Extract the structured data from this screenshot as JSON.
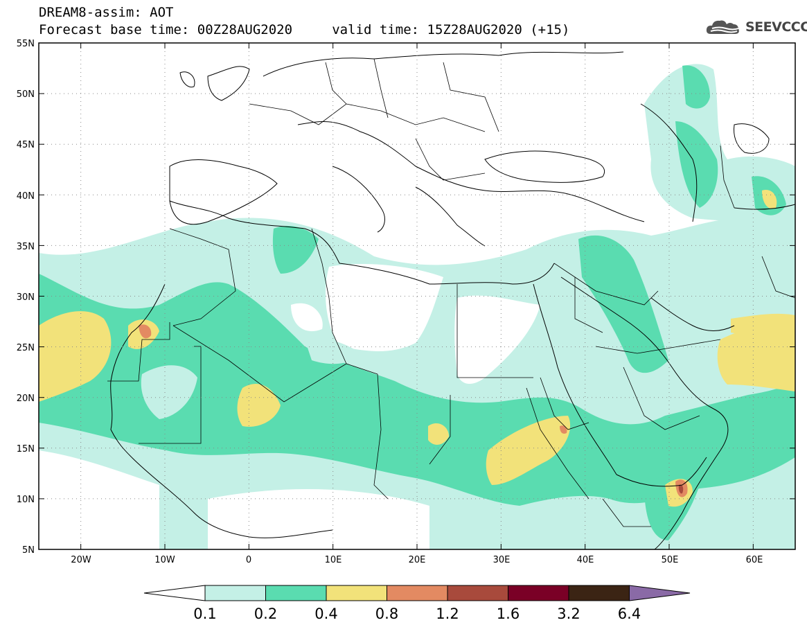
{
  "header": {
    "title": "DREAM8-assim: AOT",
    "subtitle": "Forecast base time: 00Z28AUG2020     valid time: 15Z28AUG2020 (+15)",
    "logo_text": "SEEVCCC",
    "logo_icon": "cloud-icon"
  },
  "map": {
    "lat_labels": [
      "55N",
      "50N",
      "45N",
      "40N",
      "35N",
      "30N",
      "25N",
      "20N",
      "15N",
      "10N",
      "5N"
    ],
    "lon_labels": [
      "20W",
      "10W",
      "0",
      "10E",
      "20E",
      "30E",
      "40E",
      "50E",
      "60E"
    ],
    "grid": true,
    "colors": {
      "c01": "#c4f0e6",
      "c02": "#5adcb0",
      "c04": "#f2e27a",
      "c08": "#e38a62",
      "c12": "#a84a3c"
    }
  },
  "colorbar": {
    "labels": [
      "0.1",
      "0.2",
      "0.4",
      "0.8",
      "1.2",
      "1.6",
      "3.2",
      "6.4"
    ],
    "colors": [
      "#ffffff",
      "#c4f0e6",
      "#5adcb0",
      "#f2e27a",
      "#e38a62",
      "#a84a3c",
      "#7a0026",
      "#3b2414",
      "#8a6aa6"
    ]
  }
}
